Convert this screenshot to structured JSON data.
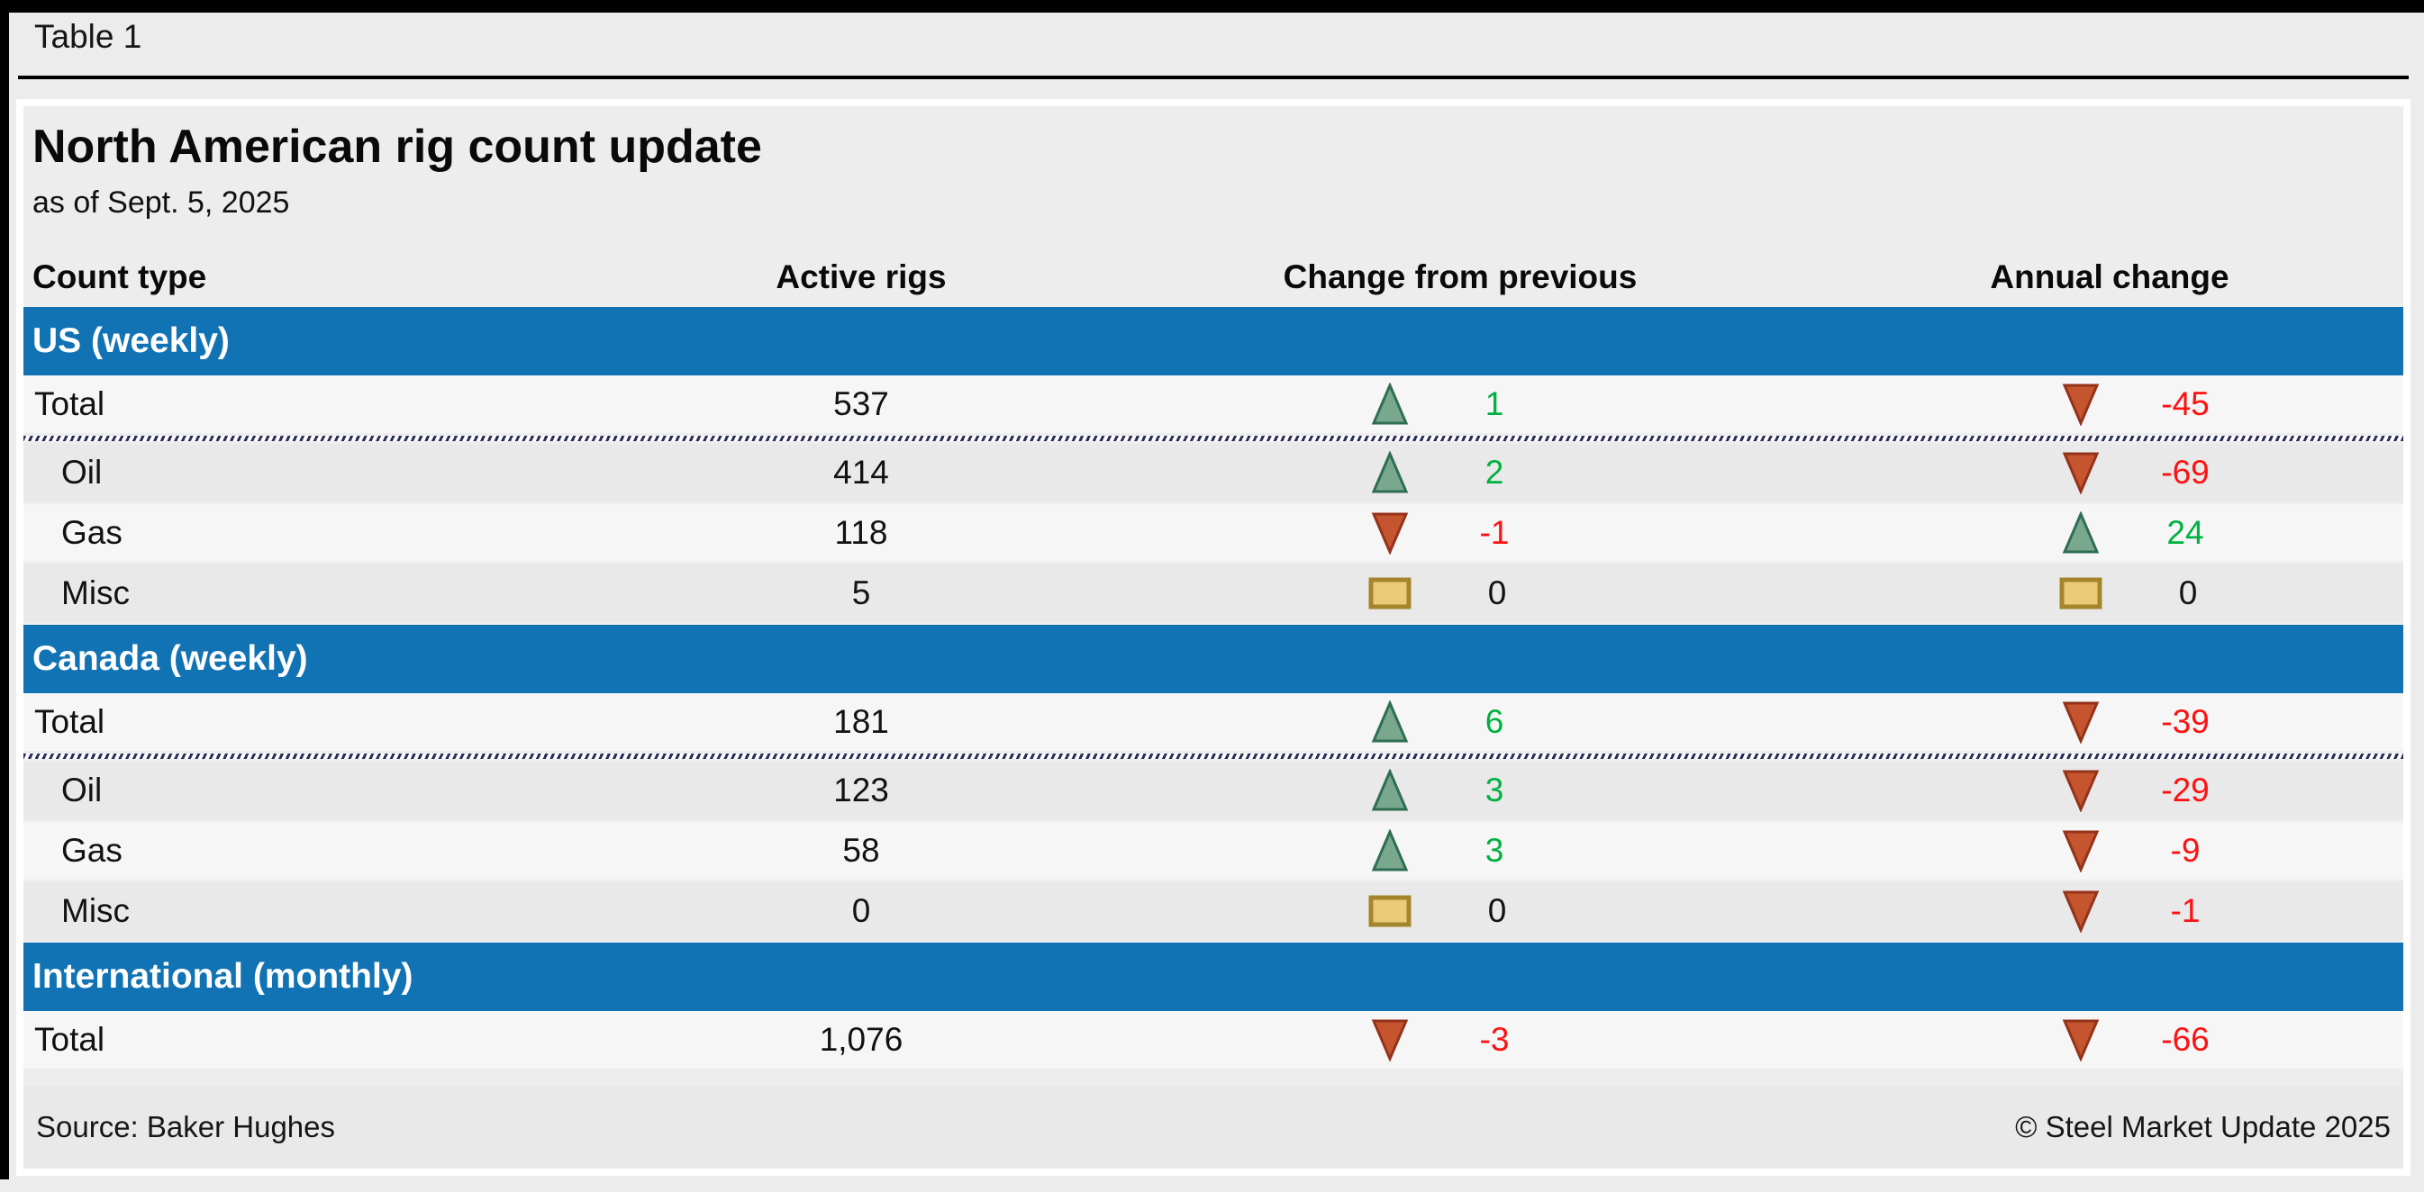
{
  "window": {
    "table_label": "Table 1"
  },
  "header": {
    "title": "North American rig count update",
    "subtitle": "as of Sept. 5, 2025"
  },
  "columns": [
    "Count type",
    "Active rigs",
    "Change from previous",
    "Annual change"
  ],
  "sections": [
    {
      "label": "US (weekly)",
      "rows": [
        {
          "label": "Total",
          "total": true,
          "active": "537",
          "change": {
            "dir": "up",
            "value": "1"
          },
          "annual": {
            "dir": "down",
            "value": "-45"
          }
        },
        {
          "label": "Oil",
          "total": false,
          "active": "414",
          "change": {
            "dir": "up",
            "value": "2"
          },
          "annual": {
            "dir": "down",
            "value": "-69"
          }
        },
        {
          "label": "Gas",
          "total": false,
          "active": "118",
          "change": {
            "dir": "down",
            "value": "-1"
          },
          "annual": {
            "dir": "up",
            "value": "24"
          }
        },
        {
          "label": "Misc",
          "total": false,
          "active": "5",
          "change": {
            "dir": "flat",
            "value": "0"
          },
          "annual": {
            "dir": "flat",
            "value": "0"
          }
        }
      ]
    },
    {
      "label": "Canada (weekly)",
      "rows": [
        {
          "label": "Total",
          "total": true,
          "active": "181",
          "change": {
            "dir": "up",
            "value": "6"
          },
          "annual": {
            "dir": "down",
            "value": "-39"
          }
        },
        {
          "label": "Oil",
          "total": false,
          "active": "123",
          "change": {
            "dir": "up",
            "value": "3"
          },
          "annual": {
            "dir": "down",
            "value": "-29"
          }
        },
        {
          "label": "Gas",
          "total": false,
          "active": "58",
          "change": {
            "dir": "up",
            "value": "3"
          },
          "annual": {
            "dir": "down",
            "value": "-9"
          }
        },
        {
          "label": "Misc",
          "total": false,
          "active": "0",
          "change": {
            "dir": "flat",
            "value": "0"
          },
          "annual": {
            "dir": "down",
            "value": "-1"
          }
        }
      ]
    },
    {
      "label": "International (monthly)",
      "rows": [
        {
          "label": "Total",
          "total": true,
          "active": "1,076",
          "change": {
            "dir": "down",
            "value": "-3"
          },
          "annual": {
            "dir": "down",
            "value": "-66"
          }
        }
      ]
    }
  ],
  "footer": {
    "source": "Source: Baker Hughes",
    "copyright": "© Steel Market Update 2025"
  },
  "colors": {
    "band_blue": "#1273b4",
    "green_text": "#00b140",
    "red_text": "#fe1111",
    "up_fill": "#7aa88e",
    "up_stroke": "#2f6e53",
    "down_fill": "#c5552f",
    "down_stroke": "#94331a",
    "flat_fill": "#eccb78",
    "flat_stroke": "#a3862b",
    "dashed_navy": "#2b2d5c"
  },
  "chart_data": {
    "type": "table",
    "title": "North American rig count update",
    "subtitle": "as of Sept. 5, 2025",
    "columns": [
      "Count type",
      "Active rigs",
      "Change from previous",
      "Annual change"
    ],
    "rows": [
      [
        "US (weekly)",
        null,
        null,
        null
      ],
      [
        "Total",
        537,
        1,
        -45
      ],
      [
        "Oil",
        414,
        2,
        -69
      ],
      [
        "Gas",
        118,
        -1,
        24
      ],
      [
        "Misc",
        5,
        0,
        0
      ],
      [
        "Canada (weekly)",
        null,
        null,
        null
      ],
      [
        "Total",
        181,
        6,
        -39
      ],
      [
        "Oil",
        123,
        3,
        -29
      ],
      [
        "Gas",
        58,
        3,
        -9
      ],
      [
        "Misc",
        0,
        0,
        -1
      ],
      [
        "International (monthly)",
        null,
        null,
        null
      ],
      [
        "Total",
        1076,
        -3,
        -66
      ]
    ],
    "source": "Source: Baker Hughes",
    "copyright": "© Steel Market Update 2025"
  }
}
